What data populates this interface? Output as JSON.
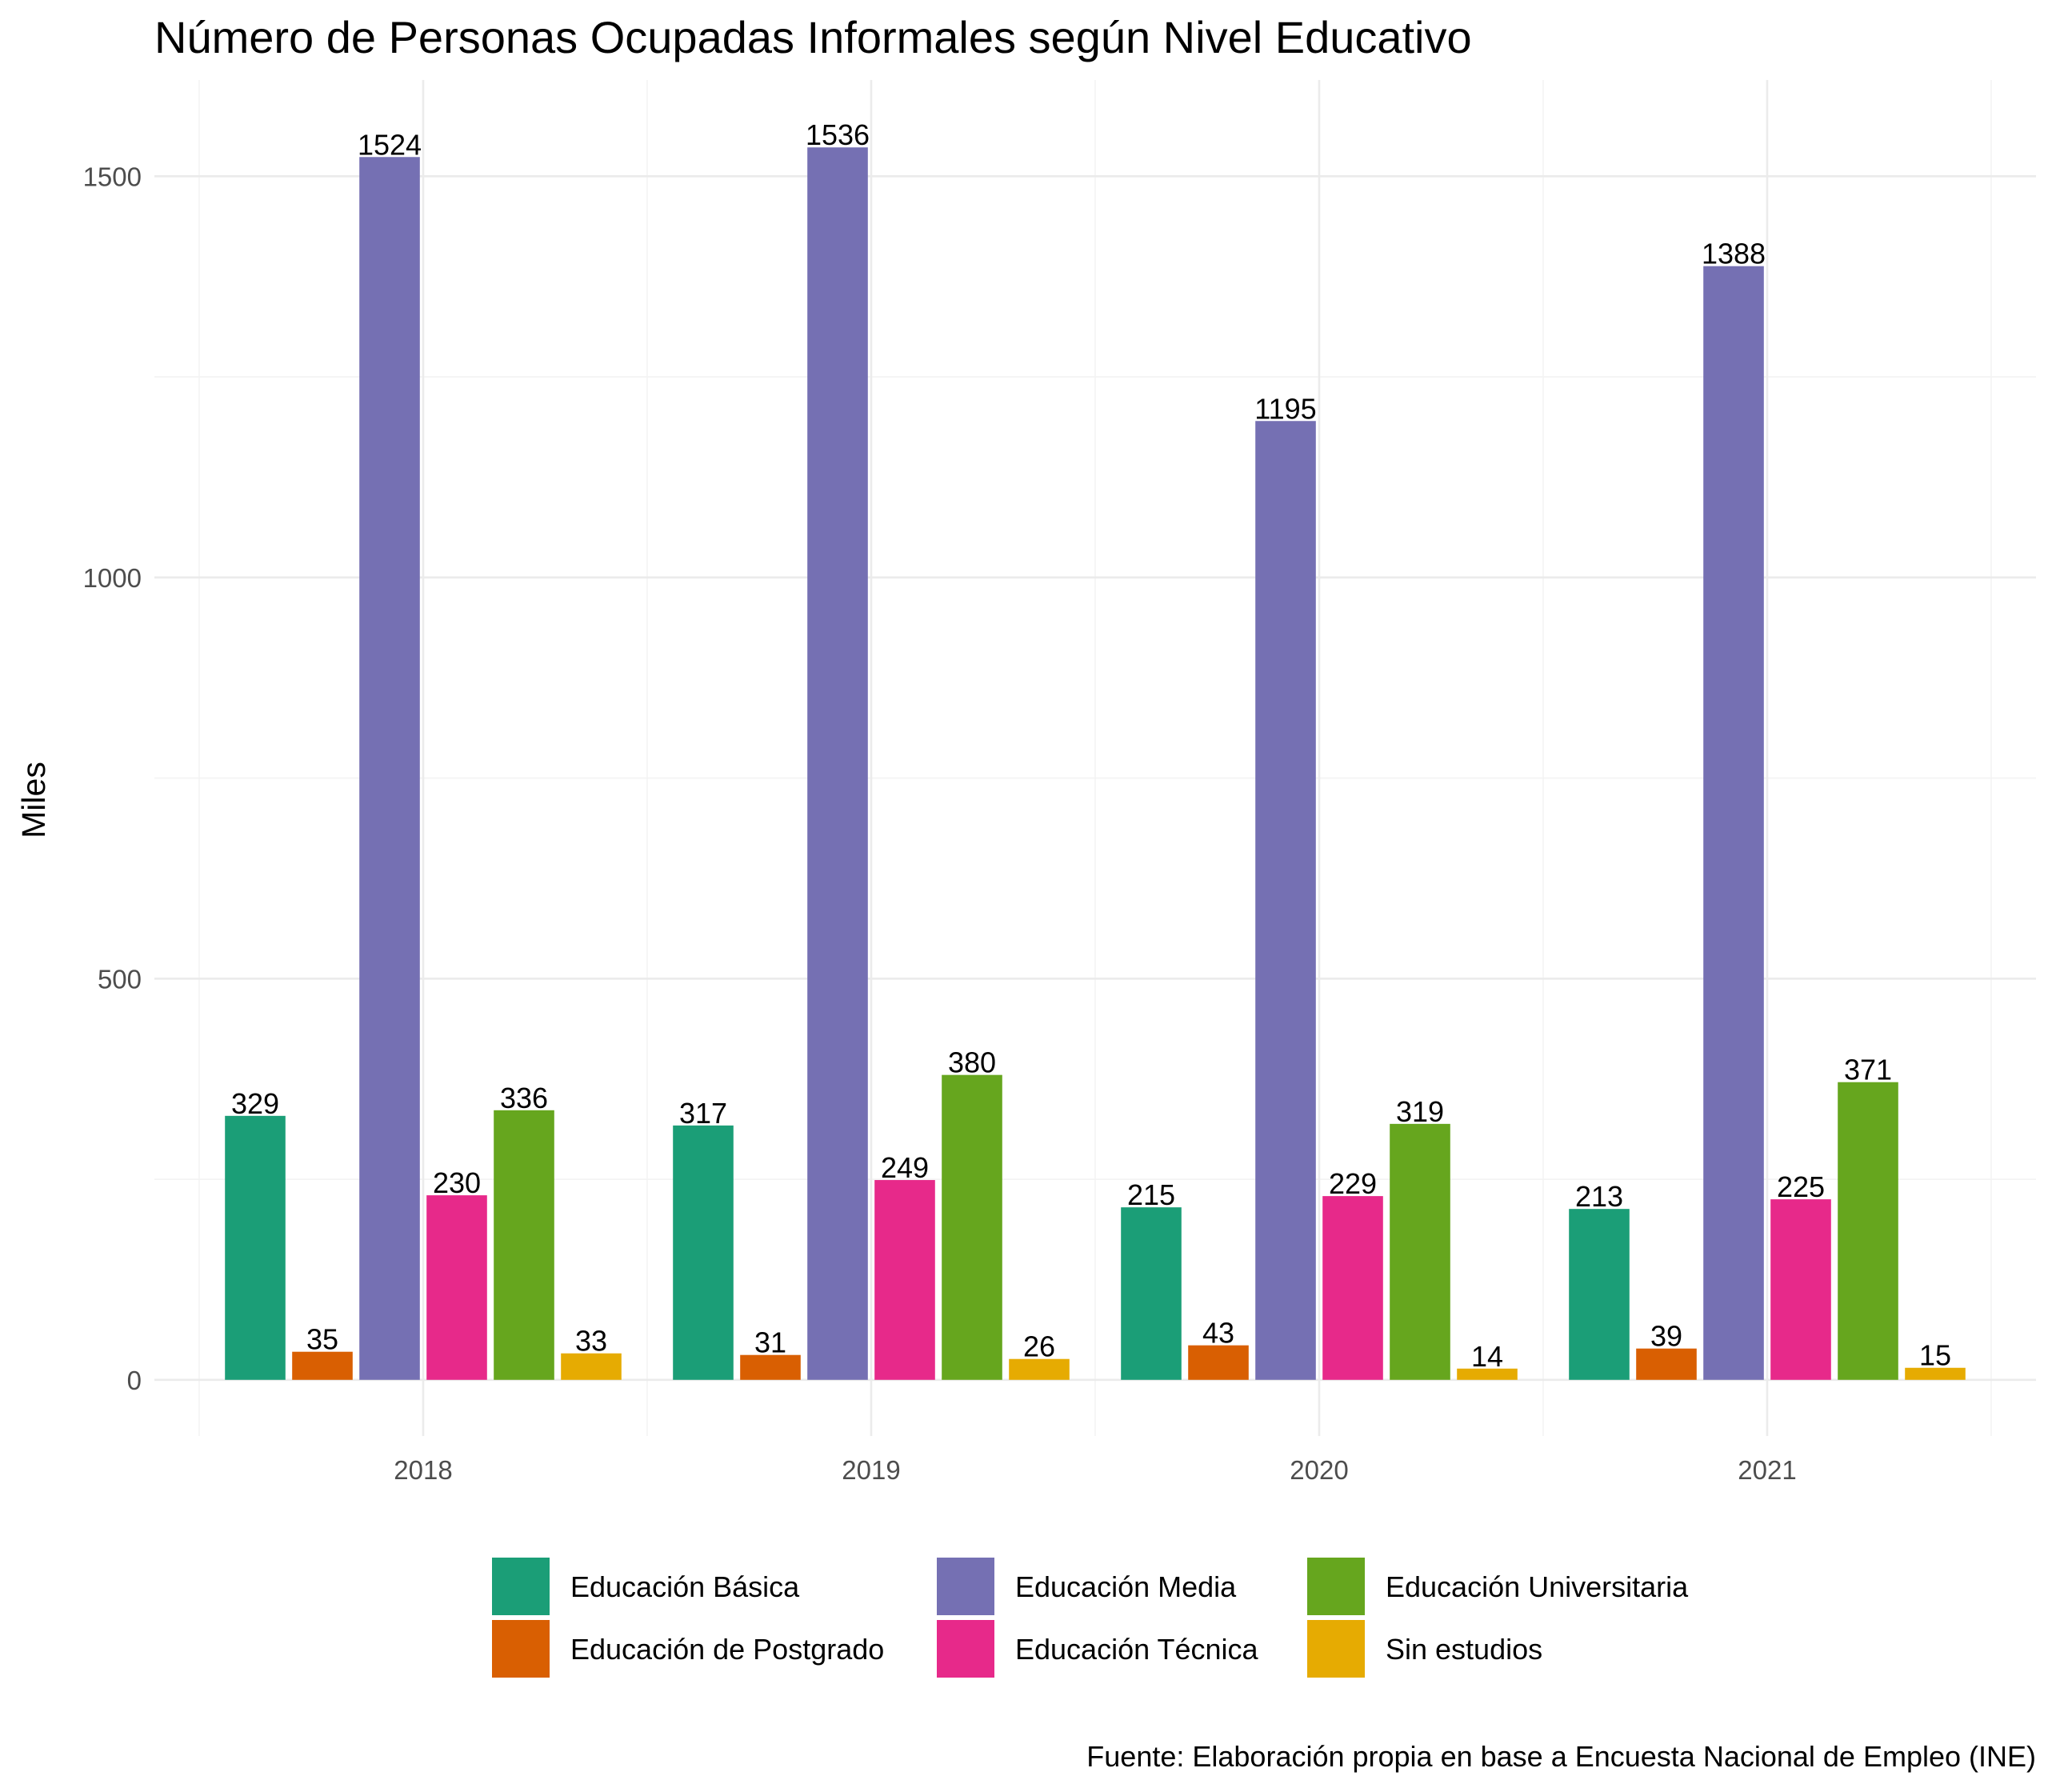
{
  "chart_data": {
    "type": "bar",
    "title": "Número de Personas Ocupadas Informales según Nivel Educativo",
    "xlabel": "",
    "ylabel": "Miles",
    "caption": "Fuente: Elaboración propia en base a Encuesta Nacional de Empleo (INE)",
    "categories": [
      "2018",
      "2019",
      "2020",
      "2021"
    ],
    "ylim": [
      -70,
      1620
    ],
    "yticks": [
      0,
      500,
      1000,
      1500
    ],
    "yticks_labels": [
      "0",
      "500",
      "1000",
      "1500"
    ],
    "grid": true,
    "legend_position": "bottom",
    "series": [
      {
        "name": "Educación Básica",
        "color": "#1b9e77",
        "values": [
          329,
          317,
          215,
          213
        ],
        "labels": [
          "329",
          "317",
          "215",
          "213"
        ]
      },
      {
        "name": "Educación de Postgrado",
        "color": "#d95f02",
        "values": [
          35,
          31,
          43,
          39
        ],
        "labels": [
          "35",
          "31",
          "43",
          "39"
        ]
      },
      {
        "name": "Educación Media",
        "color": "#7570b3",
        "values": [
          1524,
          1536,
          1195,
          1388
        ],
        "labels": [
          "1524",
          "1536",
          "1195",
          "1388"
        ]
      },
      {
        "name": "Educación Técnica",
        "color": "#e7298a",
        "values": [
          230,
          249,
          229,
          225
        ],
        "labels": [
          "230",
          "249",
          "229",
          "225"
        ]
      },
      {
        "name": "Educación Universitaria",
        "color": "#66a61e",
        "values": [
          336,
          380,
          319,
          371
        ],
        "labels": [
          "336",
          "380",
          "319",
          "371"
        ]
      },
      {
        "name": "Sin estudios",
        "color": "#e6ab02",
        "values": [
          33,
          26,
          14,
          15
        ],
        "labels": [
          "33",
          "26",
          "14",
          "15"
        ]
      }
    ],
    "legend_order": [
      0,
      2,
      4,
      1,
      3,
      5
    ]
  }
}
